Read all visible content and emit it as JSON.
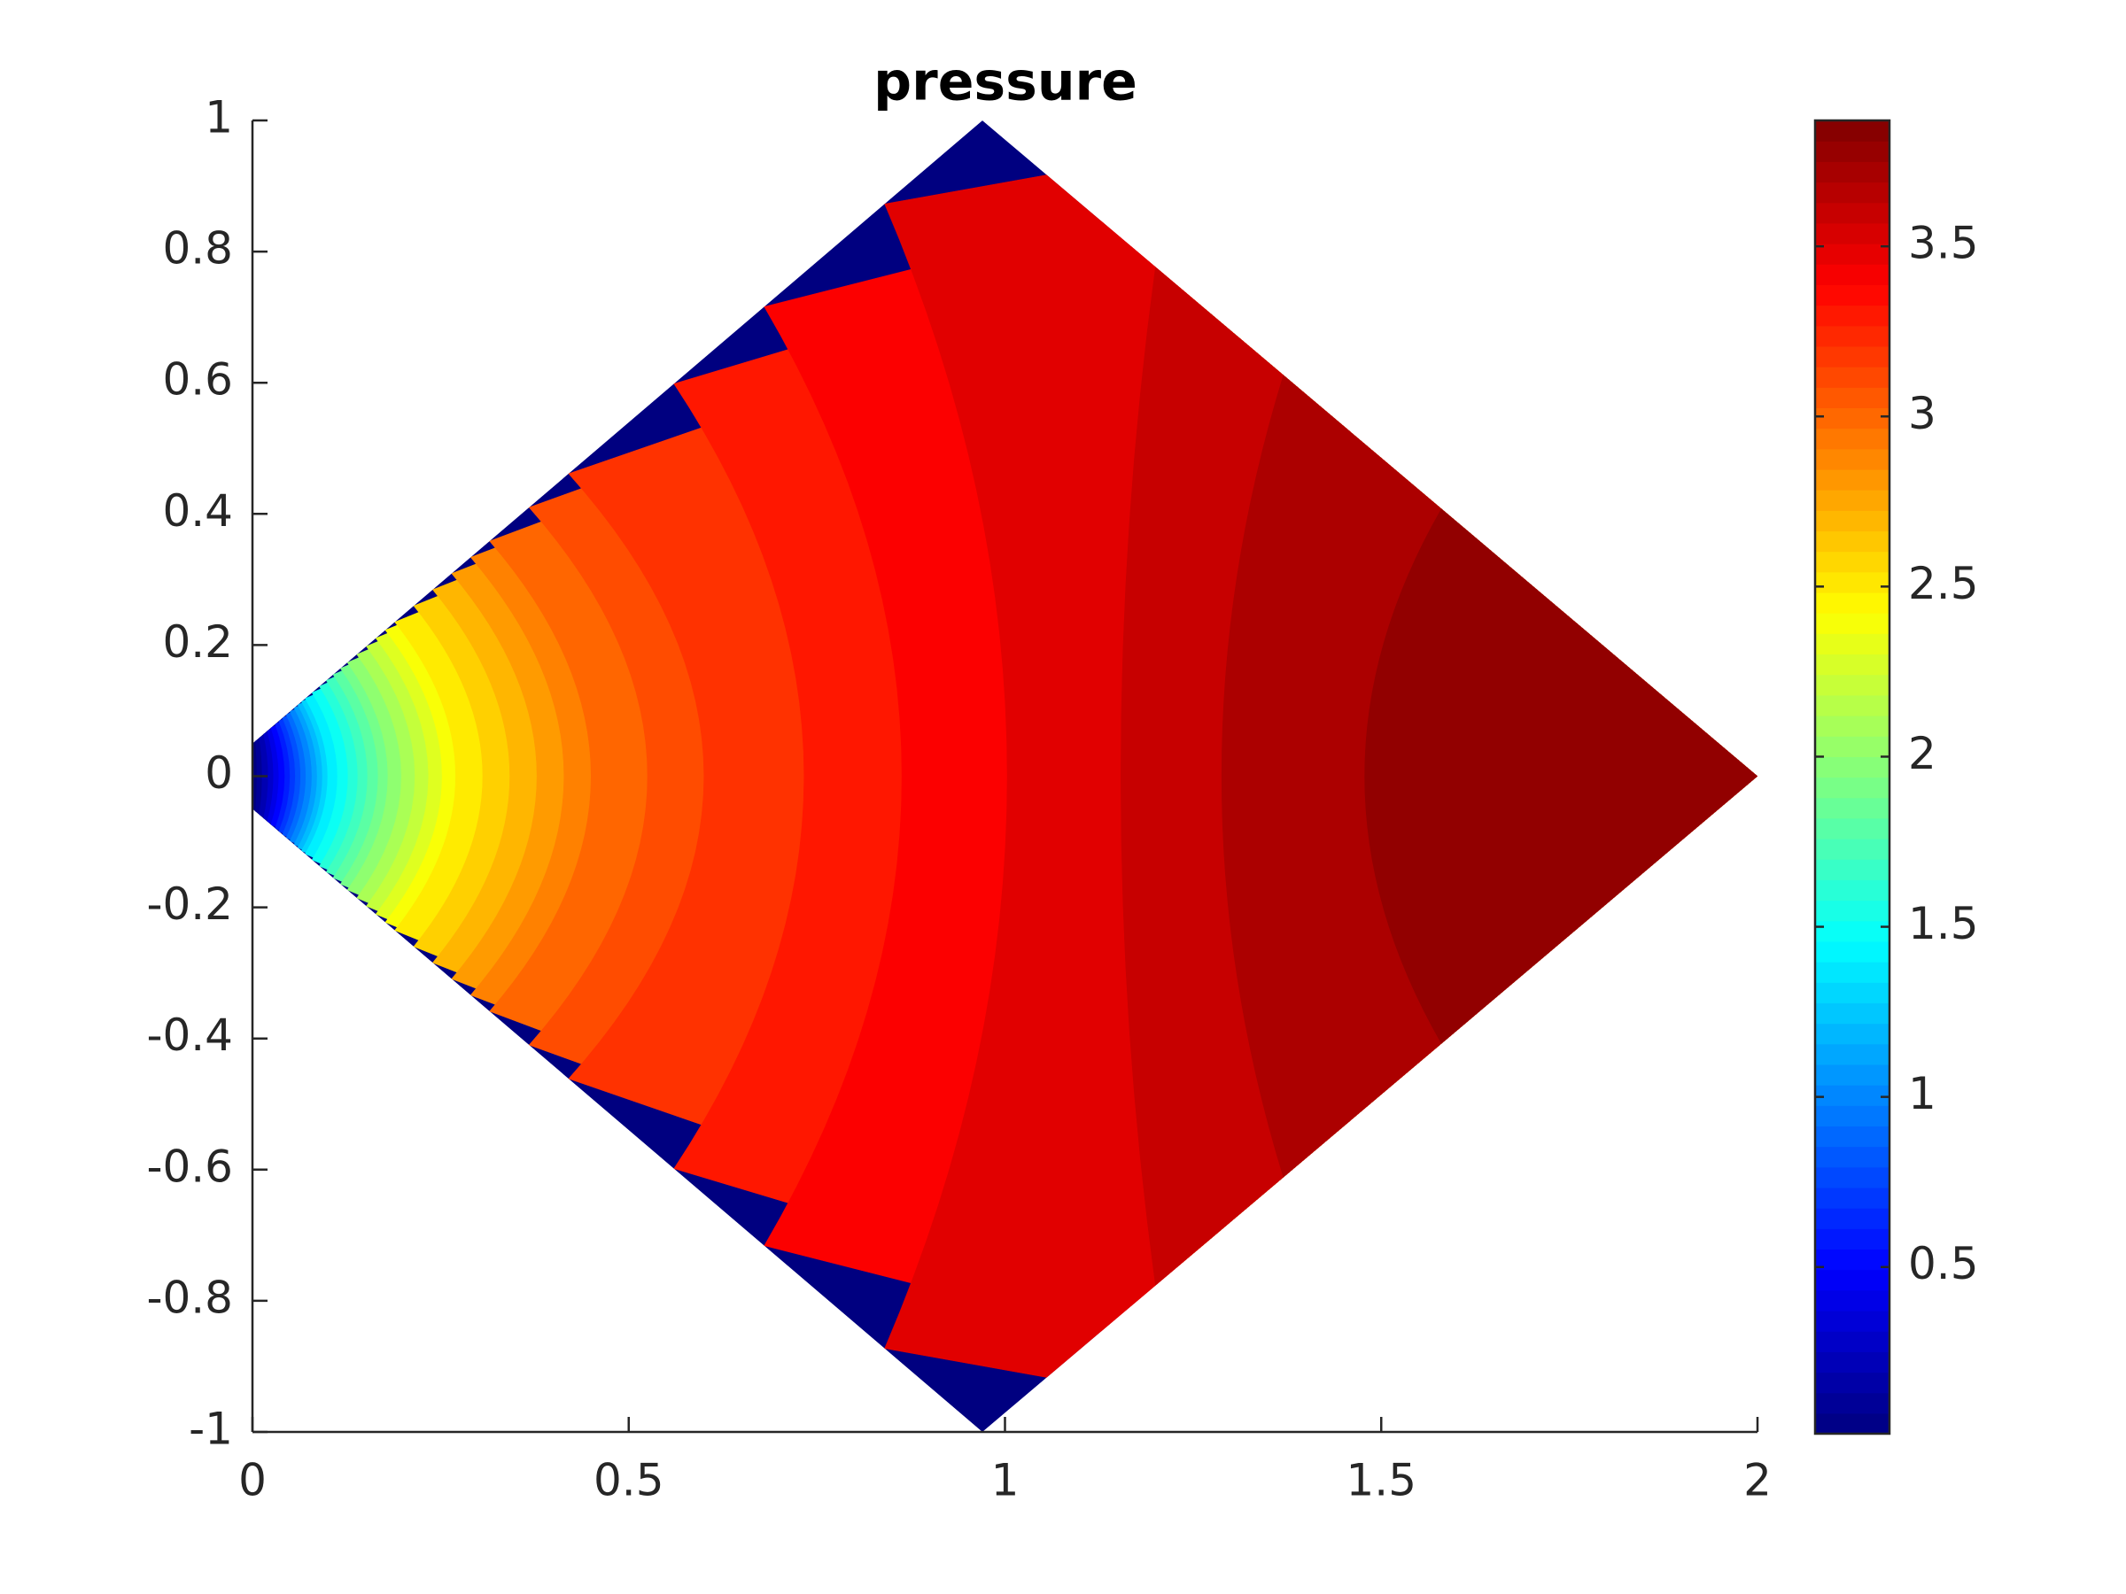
{
  "chart_data": {
    "type": "contourf",
    "title": "pressure",
    "colormap": "jet",
    "xlim": [
      0,
      2
    ],
    "xticks": [
      0,
      0.5,
      1,
      1.5,
      2
    ],
    "ylim": [
      -1,
      1
    ],
    "yticks": [
      -1,
      -0.8,
      -0.6,
      -0.4,
      -0.2,
      0,
      0.2,
      0.4,
      0.6,
      0.8,
      1
    ],
    "clim": [
      0.01,
      3.87
    ],
    "cticks": [
      0.5,
      1,
      1.5,
      2,
      2.5,
      3,
      3.5
    ],
    "domain": {
      "x": [
        0,
        0.97,
        2,
        0.97,
        0
      ],
      "y": [
        0.05,
        1,
        0,
        -1,
        -0.05
      ]
    },
    "contours": [
      {
        "level": 0.1,
        "x": 0.0059,
        "x_edge": 0.0041
      },
      {
        "level": 0.2,
        "x": 0.013,
        "x_edge": 0.0091
      },
      {
        "level": 0.3,
        "x": 0.021,
        "x_edge": 0.0147
      },
      {
        "level": 0.4,
        "x": 0.028,
        "x_edge": 0.0196
      },
      {
        "level": 0.5,
        "x": 0.035,
        "x_edge": 0.0245
      },
      {
        "level": 0.6,
        "x": 0.043,
        "x_edge": 0.0301
      },
      {
        "level": 0.7,
        "x": 0.05,
        "x_edge": 0.035
      },
      {
        "level": 0.8,
        "x": 0.057,
        "x_edge": 0.0399
      },
      {
        "level": 0.9,
        "x": 0.064,
        "x_edge": 0.0448
      },
      {
        "level": 1.0,
        "x": 0.071,
        "x_edge": 0.0497
      },
      {
        "level": 1.1,
        "x": 0.079,
        "x_edge": 0.0553
      },
      {
        "level": 1.2,
        "x": 0.086,
        "x_edge": 0.0602
      },
      {
        "level": 1.3,
        "x": 0.093,
        "x_edge": 0.0651
      },
      {
        "level": 1.4,
        "x": 0.1,
        "x_edge": 0.07
      },
      {
        "level": 1.5,
        "x": 0.113,
        "x_edge": 0.0791
      },
      {
        "level": 1.6,
        "x": 0.127,
        "x_edge": 0.0889
      },
      {
        "level": 1.7,
        "x": 0.14,
        "x_edge": 0.098
      },
      {
        "level": 1.8,
        "x": 0.153,
        "x_edge": 0.1071
      },
      {
        "level": 1.9,
        "x": 0.167,
        "x_edge": 0.1169
      },
      {
        "level": 2.0,
        "x": 0.18,
        "x_edge": 0.126
      },
      {
        "level": 2.1,
        "x": 0.198,
        "x_edge": 0.1386
      },
      {
        "level": 2.2,
        "x": 0.216,
        "x_edge": 0.1512
      },
      {
        "level": 2.3,
        "x": 0.234,
        "x_edge": 0.1638
      },
      {
        "level": 2.4,
        "x": 0.252,
        "x_edge": 0.1764
      },
      {
        "level": 2.5,
        "x": 0.27,
        "x_edge": 0.189
      },
      {
        "level": 2.6,
        "x": 0.306,
        "x_edge": 0.2142
      },
      {
        "level": 2.7,
        "x": 0.342,
        "x_edge": 0.2394
      },
      {
        "level": 2.8,
        "x": 0.378,
        "x_edge": 0.2646
      },
      {
        "level": 2.9,
        "x": 0.414,
        "x_edge": 0.2898
      },
      {
        "level": 3.0,
        "x": 0.45,
        "x_edge": 0.315
      },
      {
        "level": 3.1,
        "x": 0.525,
        "x_edge": 0.3675
      },
      {
        "level": 3.2,
        "x": 0.6,
        "x_edge": 0.42
      },
      {
        "level": 3.3,
        "x": 0.733,
        "x_edge": 0.56
      },
      {
        "level": 3.4,
        "x": 0.863,
        "x_edge": 0.68
      },
      {
        "level": 3.5,
        "x": 1.003,
        "x_edge": 0.84
      },
      {
        "level": 3.6,
        "x": 1.154,
        "x_edge": 1.2
      },
      {
        "level": 3.7,
        "x": 1.288,
        "x_edge": 1.37
      },
      {
        "level": 3.8,
        "x": 1.478,
        "x_edge": 1.58
      }
    ]
  }
}
